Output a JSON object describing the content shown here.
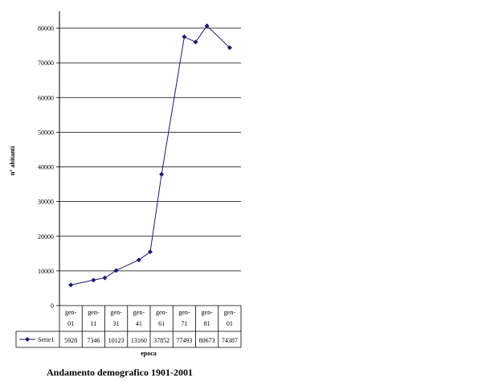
{
  "chart_data": {
    "type": "line",
    "title": "Andamento demografico 1901-2001",
    "xlabel": "epoca",
    "ylabel": "n° abitanti",
    "ylim": [
      0,
      80000
    ],
    "ytick_step": 10000,
    "ytick_labels": [
      "0",
      "10000",
      "20000",
      "30000",
      "40000",
      "50000",
      "60000",
      "70000",
      "80000"
    ],
    "grid": true,
    "legend": "data-table",
    "categories": [
      "gen-01",
      "gen-11",
      "gen-31",
      "gen-41",
      "gen-61",
      "gen-71",
      "gen-81",
      "gen-01"
    ],
    "series": [
      {
        "name": "Serie1",
        "color": "#1a1a6e",
        "values": [
          5928,
          7346,
          10123,
          13160,
          37852,
          77493,
          80673,
          74387
        ],
        "value_labels": [
          "5928",
          "7346",
          "10123",
          "13160",
          "37852",
          "77493",
          "80673",
          "74387"
        ]
      }
    ],
    "extra_points": [
      {
        "after_index": 1,
        "value": 8000
      },
      {
        "after_index": 3,
        "value": 15500
      },
      {
        "after_index": 5,
        "value": 76000
      }
    ]
  }
}
